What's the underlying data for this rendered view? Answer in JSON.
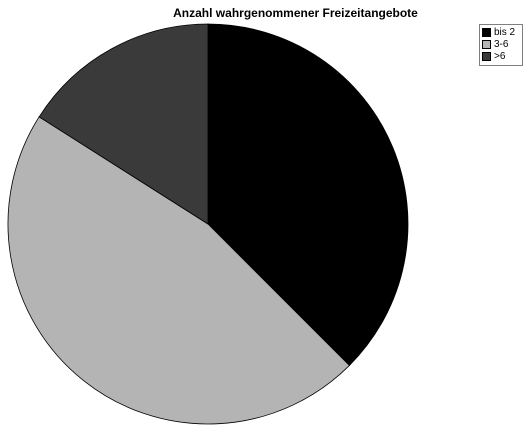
{
  "chart_data": {
    "type": "pie",
    "title": "Anzahl wahrgenommener Freizeitangebote",
    "categories": [
      "bis 2",
      "3-6",
      ">6"
    ],
    "values": [
      37.5,
      46.5,
      16.0
    ],
    "colors": [
      "#000000",
      "#b4b4b4",
      "#3a3a3a"
    ],
    "legend_position": "top-right",
    "start_angle": "12 o'clock, clockwise"
  }
}
